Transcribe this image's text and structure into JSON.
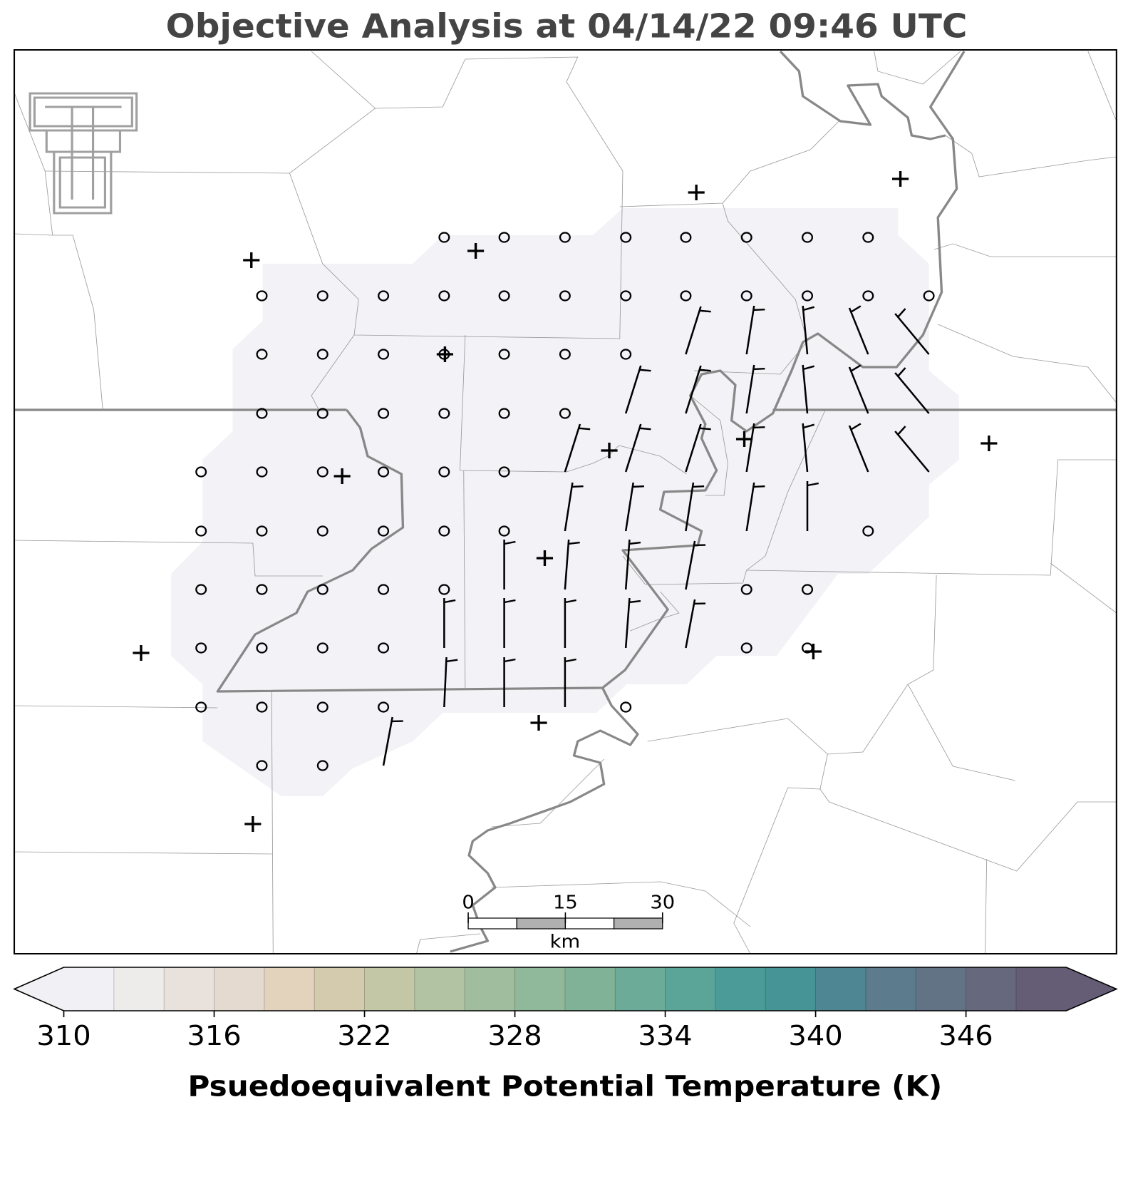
{
  "title": "Objective Analysis at 04/14/22 09:46 UTC",
  "colorbar": {
    "label": "Psuedoequivalent Potential Temperature (K)",
    "range": [
      310,
      350
    ],
    "ticks": [
      310,
      316,
      322,
      328,
      334,
      340,
      346
    ],
    "colors": [
      "#f0f0f5",
      "#eeebeb",
      "#e9e2dc",
      "#e5dad0",
      "#e3d2bc",
      "#d4cbaf",
      "#c3c7a6",
      "#b2c3a4",
      "#a0bd9e",
      "#90b89a",
      "#80b298",
      "#6bab98",
      "#5aa498",
      "#4b9c98",
      "#479497",
      "#4f8694",
      "#5c7b8c",
      "#617385",
      "#66697e",
      "#655d75"
    ]
  },
  "scale_bar": {
    "range": [
      0,
      30
    ],
    "ticks": [
      0,
      15,
      30
    ],
    "unit": "km"
  }
}
